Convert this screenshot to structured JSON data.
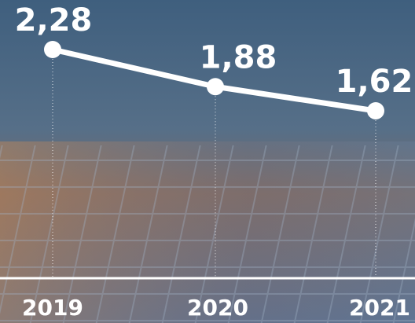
{
  "chart_data": {
    "type": "line",
    "categories": [
      "2019",
      "2020",
      "2021"
    ],
    "values": [
      2.28,
      1.88,
      1.62
    ],
    "value_labels": [
      "2,28",
      "1,88",
      "1,62"
    ],
    "color": "#ffffff"
  }
}
